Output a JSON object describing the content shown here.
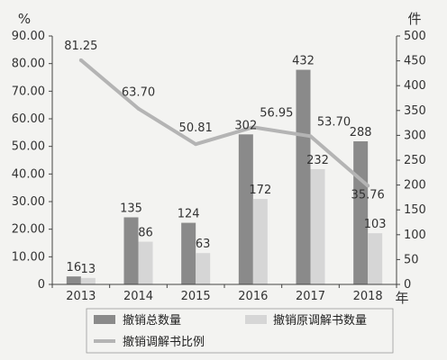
{
  "chart_data": {
    "type": "bar",
    "categories": [
      "2013",
      "2014",
      "2015",
      "2016",
      "2017",
      "2018"
    ],
    "x_unit": "年",
    "y_left": {
      "unit": "%",
      "ylim": [
        0,
        90
      ],
      "ticks": [
        "0",
        "10.00",
        "20.00",
        "30.00",
        "40.00",
        "50.00",
        "60.00",
        "70.00",
        "80.00",
        "90.00"
      ]
    },
    "y_right": {
      "unit": "件",
      "ylim": [
        0,
        500
      ],
      "ticks": [
        "0",
        "50",
        "100",
        "150",
        "200",
        "250",
        "300",
        "350",
        "400",
        "450",
        "500"
      ]
    },
    "series": [
      {
        "name": "撤销总数量",
        "kind": "bar",
        "axis": "right",
        "color": "#8a8a8a",
        "values": [
          16,
          135,
          124,
          302,
          432,
          288
        ]
      },
      {
        "name": "撤销原调解书数量",
        "kind": "bar",
        "axis": "right",
        "color": "#d6d6d6",
        "values": [
          13,
          86,
          63,
          172,
          232,
          103
        ]
      },
      {
        "name": "撤销调解书比例",
        "kind": "line",
        "axis": "left",
        "color": "#b4b4b4",
        "values": [
          81.25,
          63.7,
          50.81,
          56.95,
          53.7,
          35.76
        ],
        "labels": [
          "81.25",
          "63.70",
          "50.81",
          "56.95",
          "53.70",
          "35.76"
        ]
      }
    ],
    "legend_position": "bottom",
    "grid": false
  }
}
